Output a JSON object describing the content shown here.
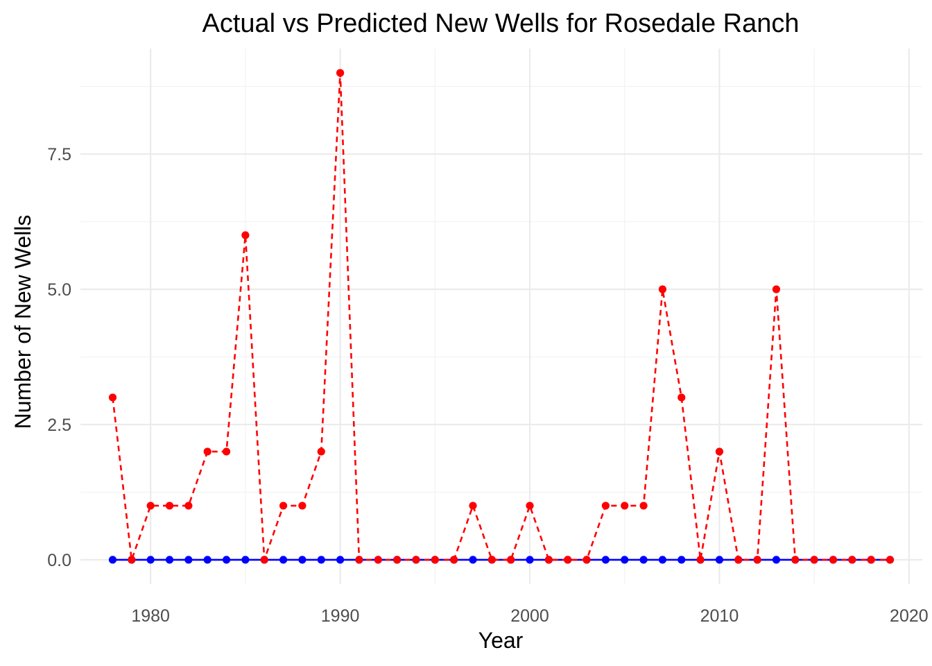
{
  "chart_data": {
    "type": "line",
    "title": "Actual vs Predicted New Wells for Rosedale Ranch",
    "xlabel": "Year",
    "ylabel": "Number of New Wells",
    "xlim": [
      1976.3,
      2020.7
    ],
    "ylim": [
      -0.45,
      9.45
    ],
    "x_ticks": [
      1980,
      1990,
      2000,
      2010,
      2020
    ],
    "x_minor_ticks": [
      1985,
      1995,
      2005,
      2015
    ],
    "y_ticks": [
      0,
      2.5,
      5,
      7.5
    ],
    "y_tick_labels": [
      "0.0",
      "2.5",
      "5.0",
      "7.5"
    ],
    "y_minor_ticks": [
      1.25,
      3.75,
      6.25,
      8.75
    ],
    "grid": true,
    "legend": "none",
    "x": [
      1978,
      1979,
      1980,
      1981,
      1982,
      1983,
      1984,
      1985,
      1986,
      1987,
      1988,
      1989,
      1990,
      1991,
      1992,
      1993,
      1994,
      1995,
      1996,
      1997,
      1998,
      1999,
      2000,
      2001,
      2002,
      2003,
      2004,
      2005,
      2006,
      2007,
      2008,
      2009,
      2010,
      2011,
      2012,
      2013,
      2014,
      2015,
      2016,
      2017,
      2018,
      2019
    ],
    "series": [
      {
        "color": "#0000ff",
        "line_style": "solid",
        "values": [
          0,
          0,
          0,
          0,
          0,
          0,
          0,
          0,
          0,
          0,
          0,
          0,
          0,
          0,
          0,
          0,
          0,
          0,
          0,
          0,
          0,
          0,
          0,
          0,
          0,
          0,
          0,
          0,
          0,
          0,
          0,
          0,
          0,
          0,
          0,
          0,
          0,
          0,
          0,
          0,
          0,
          0
        ]
      },
      {
        "color": "#ff0000",
        "line_style": "dashed",
        "values": [
          3,
          0,
          1,
          1,
          1,
          2,
          2,
          6,
          0,
          1,
          1,
          2,
          9,
          0,
          0,
          0,
          0,
          0,
          0,
          1,
          0,
          0,
          1,
          0,
          0,
          0,
          1,
          1,
          1,
          5,
          3,
          0,
          2,
          0,
          0,
          5,
          0,
          0,
          0,
          0,
          0,
          0
        ]
      }
    ]
  }
}
